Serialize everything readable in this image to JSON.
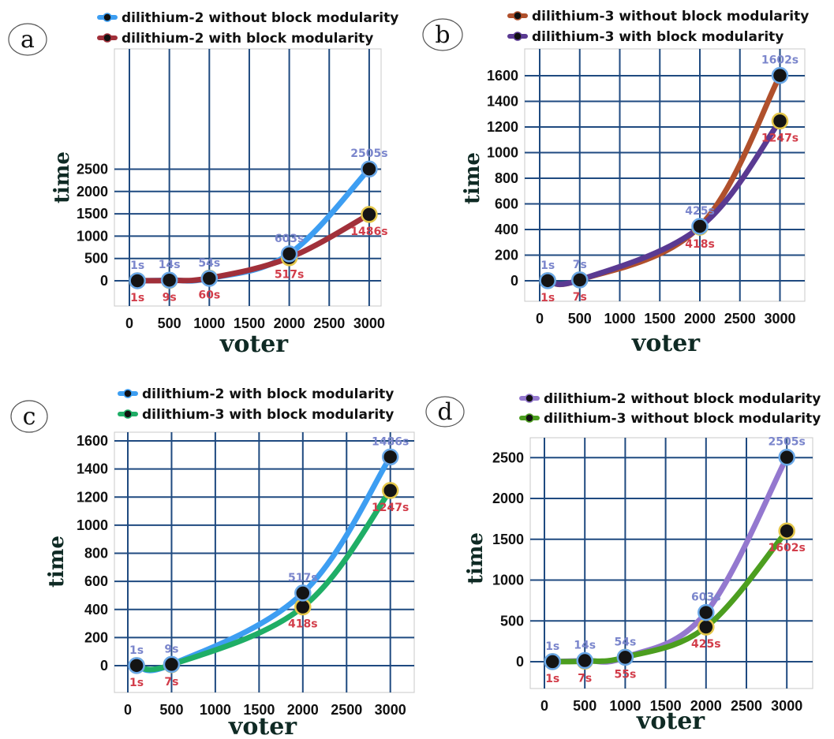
{
  "chart_data": [
    {
      "type": "line",
      "panel_letter": "a",
      "xlabel": "voter",
      "ylabel": "time",
      "x_ticks": [
        0,
        500,
        1000,
        1500,
        2000,
        2500,
        3000
      ],
      "y_ticks": [
        0,
        500,
        1000,
        1500,
        2000,
        2500
      ],
      "xlim": [
        -100,
        3250
      ],
      "ylim": [
        -150,
        2750
      ],
      "grid": true,
      "legend_position": "top",
      "series": [
        {
          "name": "dilithium-2 without block modularity",
          "color": "#3d9ef2",
          "label_color": "#7b86cc",
          "label_position": "above",
          "points": [
            {
              "x": 100,
              "y": 1,
              "label": "1s"
            },
            {
              "x": 500,
              "y": 14,
              "label": "14s"
            },
            {
              "x": 1000,
              "y": 54,
              "label": "54s"
            },
            {
              "x": 2000,
              "y": 603,
              "label": "603s"
            },
            {
              "x": 3000,
              "y": 2505,
              "label": "2505s"
            }
          ]
        },
        {
          "name": "dilithium-2 with block modularity",
          "color": "#a1303a",
          "label_color": "#d23d4a",
          "label_position": "below",
          "points": [
            {
              "x": 100,
              "y": 1,
              "label": "1s"
            },
            {
              "x": 500,
              "y": 9,
              "label": "9s"
            },
            {
              "x": 1000,
              "y": 60,
              "label": "60s"
            },
            {
              "x": 2000,
              "y": 517,
              "label": "517s"
            },
            {
              "x": 3000,
              "y": 1486,
              "label": "1486s"
            }
          ]
        }
      ]
    },
    {
      "type": "line",
      "panel_letter": "b",
      "xlabel": "voter",
      "ylabel": "time",
      "x_ticks": [
        0,
        500,
        1000,
        1500,
        2000,
        2500,
        3000
      ],
      "y_ticks": [
        0,
        200,
        400,
        600,
        800,
        1000,
        1200,
        1400,
        1600
      ],
      "xlim": [
        -100,
        3250
      ],
      "ylim": [
        -150,
        1780
      ],
      "grid": true,
      "legend_position": "top",
      "series": [
        {
          "name": "dilithium-3 without block modularity",
          "color": "#b0502c",
          "label_color": "#7b86cc",
          "label_position": "above",
          "points": [
            {
              "x": 100,
              "y": 1,
              "label": "1s"
            },
            {
              "x": 500,
              "y": 7,
              "label": "7s"
            },
            {
              "x": 2000,
              "y": 425,
              "label": "425s"
            },
            {
              "x": 3000,
              "y": 1602,
              "label": "1602s"
            }
          ]
        },
        {
          "name": "dilithium-3 with block modularity",
          "color": "#5a3a92",
          "label_color": "#d23d4a",
          "label_position": "below",
          "points": [
            {
              "x": 100,
              "y": 1,
              "label": "1s"
            },
            {
              "x": 500,
              "y": 7,
              "label": "7s"
            },
            {
              "x": 2000,
              "y": 418,
              "label": "418s"
            },
            {
              "x": 3000,
              "y": 1247,
              "label": "1247s"
            }
          ]
        }
      ]
    },
    {
      "type": "line",
      "panel_letter": "c",
      "xlabel": "voter",
      "ylabel": "time",
      "x_ticks": [
        0,
        500,
        1000,
        1500,
        2000,
        2500,
        3000
      ],
      "y_ticks": [
        0,
        200,
        400,
        600,
        800,
        1000,
        1200,
        1400,
        1600
      ],
      "xlim": [
        -100,
        3250
      ],
      "ylim": [
        -170,
        1650
      ],
      "grid": true,
      "legend_position": "top",
      "series": [
        {
          "name": "dilithium-2 with block modularity",
          "color": "#3d9ef2",
          "label_color": "#7b86cc",
          "label_position": "above",
          "points": [
            {
              "x": 100,
              "y": 1,
              "label": "1s"
            },
            {
              "x": 500,
              "y": 9,
              "label": "9s"
            },
            {
              "x": 2000,
              "y": 517,
              "label": "517s"
            },
            {
              "x": 3000,
              "y": 1486,
              "label": "1486s"
            }
          ]
        },
        {
          "name": "dilithium-3 with block modularity",
          "color": "#1fae66",
          "label_color": "#d23d4a",
          "label_position": "below",
          "points": [
            {
              "x": 100,
              "y": 1,
              "label": "1s"
            },
            {
              "x": 500,
              "y": 7,
              "label": "7s"
            },
            {
              "x": 2000,
              "y": 418,
              "label": "418s"
            },
            {
              "x": 3000,
              "y": 1247,
              "label": "1247s"
            }
          ]
        }
      ]
    },
    {
      "type": "line",
      "panel_letter": "d",
      "xlabel": "voter",
      "ylabel": "time",
      "x_ticks": [
        0,
        500,
        1000,
        1500,
        2000,
        2500,
        3000
      ],
      "y_ticks": [
        0,
        500,
        1000,
        1500,
        2000,
        2500
      ],
      "xlim": [
        -100,
        3250
      ],
      "ylim": [
        -300,
        2750
      ],
      "grid": true,
      "legend_position": "top",
      "series": [
        {
          "name": "dilithium-2 without block modularity",
          "color": "#9478cf",
          "label_color": "#7b86cc",
          "label_position": "above",
          "points": [
            {
              "x": 100,
              "y": 1,
              "label": "1s"
            },
            {
              "x": 500,
              "y": 14,
              "label": "14s"
            },
            {
              "x": 1000,
              "y": 54,
              "label": "54s"
            },
            {
              "x": 2000,
              "y": 603,
              "label": "603s"
            },
            {
              "x": 3000,
              "y": 2505,
              "label": "2505s"
            }
          ]
        },
        {
          "name": "dilithium-3 without block modularity",
          "color": "#4c9e1f",
          "label_color": "#d23d4a",
          "label_position": "below",
          "points": [
            {
              "x": 100,
              "y": 1,
              "label": "1s"
            },
            {
              "x": 500,
              "y": 7,
              "label": "7s"
            },
            {
              "x": 1000,
              "y": 55,
              "label": "55s"
            },
            {
              "x": 2000,
              "y": 425,
              "label": "425s"
            },
            {
              "x": 3000,
              "y": 1602,
              "label": "1602s"
            }
          ]
        }
      ]
    }
  ]
}
